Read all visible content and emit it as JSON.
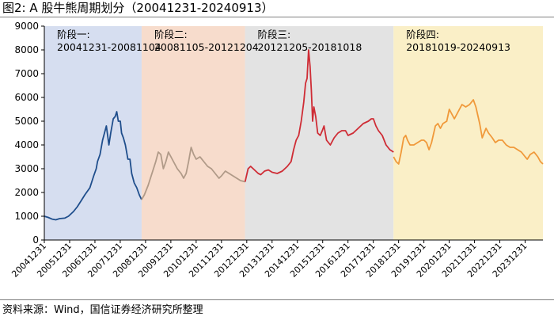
{
  "figure": {
    "title": "图2: A 股牛熊周期划分（20041231-20240913）",
    "source": "资料来源：Wind，国信证券经济研究所整理"
  },
  "chart_data": {
    "type": "line",
    "title": "图2: A 股牛熊周期划分（20041231-20240913）",
    "xlabel": "",
    "ylabel": "",
    "ylim": [
      0,
      9000
    ],
    "yticks": [
      "0",
      "1000",
      "2000",
      "3000",
      "4000",
      "5000",
      "6000",
      "7000",
      "8000",
      "9000"
    ],
    "xlim": [
      2004.9972,
      2024.7
    ],
    "xticks": [
      "20041231",
      "20051231",
      "20061231",
      "20071231",
      "20081231",
      "20091231",
      "20101231",
      "20111231",
      "20121231",
      "20131231",
      "20141231",
      "20151231",
      "20161231",
      "20171231",
      "20181231",
      "20191231",
      "20201231",
      "20211231",
      "20221231",
      "20231231"
    ],
    "grid": false,
    "legend": "none",
    "periods": [
      {
        "label": "阶段一:",
        "range": "20041231-20081104",
        "start": 2004.9972,
        "end": 2008.8425,
        "color": "#d6def0"
      },
      {
        "label": "阶段二:",
        "range": "20081105-20121204",
        "start": 2008.8425,
        "end": 2012.9265,
        "color": "#f7dccc"
      },
      {
        "label": "阶段三:",
        "range": "20121205-20181018",
        "start": 2012.9265,
        "end": 2018.7968,
        "color": "#e3e3e3"
      },
      {
        "label": "阶段四:",
        "range": "20181019-20240913",
        "start": 2018.7968,
        "end": 2024.7,
        "color": "#faefc7"
      }
    ],
    "series": [
      {
        "color": "#1f4e8c",
        "x": [
          2004.997,
          2005.15,
          2005.3,
          2005.45,
          2005.6,
          2005.8,
          2005.95,
          2006.15,
          2006.3,
          2006.45,
          2006.6,
          2006.8,
          2006.95,
          2007.05,
          2007.1,
          2007.2,
          2007.3,
          2007.4,
          2007.45,
          2007.55,
          2007.62,
          2007.72,
          2007.8,
          2007.86,
          2007.92,
          2008.0,
          2008.05,
          2008.12,
          2008.2,
          2008.3,
          2008.38,
          2008.45,
          2008.55,
          2008.65,
          2008.75,
          2008.84
        ],
        "y": [
          1000,
          950,
          880,
          850,
          900,
          920,
          1000,
          1200,
          1400,
          1650,
          1900,
          2200,
          2700,
          3000,
          3300,
          3600,
          4200,
          4600,
          4800,
          4000,
          4500,
          5100,
          5200,
          5400,
          5000,
          5000,
          4500,
          4300,
          4000,
          3400,
          3400,
          2800,
          2400,
          2200,
          1900,
          1700
        ]
      },
      {
        "color": "#b09a88",
        "x": [
          2008.84,
          2008.95,
          2009.1,
          2009.25,
          2009.4,
          2009.5,
          2009.6,
          2009.7,
          2009.8,
          2009.9,
          2010.0,
          2010.1,
          2010.25,
          2010.4,
          2010.5,
          2010.6,
          2010.7,
          2010.8,
          2010.9,
          2011.0,
          2011.15,
          2011.3,
          2011.45,
          2011.6,
          2011.75,
          2011.9,
          2012.0,
          2012.15,
          2012.3,
          2012.45,
          2012.6,
          2012.75,
          2012.93
        ],
        "y": [
          1700,
          1900,
          2300,
          2800,
          3300,
          3700,
          3600,
          3000,
          3300,
          3700,
          3500,
          3300,
          3000,
          2800,
          2600,
          2800,
          3300,
          3900,
          3600,
          3400,
          3500,
          3300,
          3100,
          3000,
          2800,
          2600,
          2700,
          2900,
          2800,
          2700,
          2600,
          2500,
          2450
        ]
      },
      {
        "color": "#cf2c35",
        "x": [
          2012.93,
          2013.05,
          2013.15,
          2013.3,
          2013.45,
          2013.55,
          2013.7,
          2013.85,
          2014.0,
          2014.2,
          2014.4,
          2014.6,
          2014.75,
          2014.85,
          2014.95,
          2015.05,
          2015.15,
          2015.25,
          2015.32,
          2015.38,
          2015.44,
          2015.5,
          2015.55,
          2015.6,
          2015.65,
          2015.72,
          2015.8,
          2015.9,
          2015.98,
          2016.05,
          2016.15,
          2016.3,
          2016.45,
          2016.6,
          2016.75,
          2016.9,
          2017.0,
          2017.2,
          2017.4,
          2017.6,
          2017.8,
          2017.92,
          2018.0,
          2018.1,
          2018.2,
          2018.35,
          2018.5,
          2018.65,
          2018.8
        ],
        "y": [
          2450,
          3000,
          3100,
          2950,
          2800,
          2750,
          2900,
          2950,
          2850,
          2800,
          2900,
          3100,
          3300,
          3800,
          4200,
          4400,
          5000,
          5800,
          6600,
          6800,
          8000,
          7300,
          6300,
          5000,
          5600,
          5200,
          4500,
          4400,
          4600,
          4800,
          4200,
          4000,
          4300,
          4500,
          4600,
          4600,
          4400,
          4500,
          4700,
          4900,
          5000,
          5100,
          5100,
          4800,
          4600,
          4400,
          4000,
          3800,
          3700
        ]
      },
      {
        "color": "#f0993a",
        "x": [
          2018.8,
          2018.9,
          2019.0,
          2019.1,
          2019.2,
          2019.28,
          2019.35,
          2019.45,
          2019.6,
          2019.75,
          2019.9,
          2020.0,
          2020.1,
          2020.2,
          2020.3,
          2020.45,
          2020.55,
          2020.65,
          2020.75,
          2020.9,
          2021.0,
          2021.1,
          2021.2,
          2021.35,
          2021.5,
          2021.65,
          2021.8,
          2021.95,
          2022.05,
          2022.2,
          2022.3,
          2022.45,
          2022.55,
          2022.7,
          2022.82,
          2022.95,
          2023.1,
          2023.25,
          2023.4,
          2023.55,
          2023.7,
          2023.85,
          2024.0,
          2024.08,
          2024.2,
          2024.35,
          2024.5,
          2024.6,
          2024.7
        ],
        "y": [
          3500,
          3300,
          3200,
          3700,
          4300,
          4400,
          4200,
          4000,
          4000,
          4100,
          4200,
          4200,
          4100,
          3800,
          4100,
          4800,
          4900,
          4700,
          4900,
          5000,
          5500,
          5300,
          5100,
          5400,
          5700,
          5600,
          5700,
          5900,
          5600,
          4900,
          4300,
          4700,
          4500,
          4300,
          4100,
          4200,
          4200,
          4000,
          3900,
          3900,
          3800,
          3700,
          3500,
          3400,
          3600,
          3700,
          3500,
          3300,
          3200
        ]
      }
    ]
  }
}
